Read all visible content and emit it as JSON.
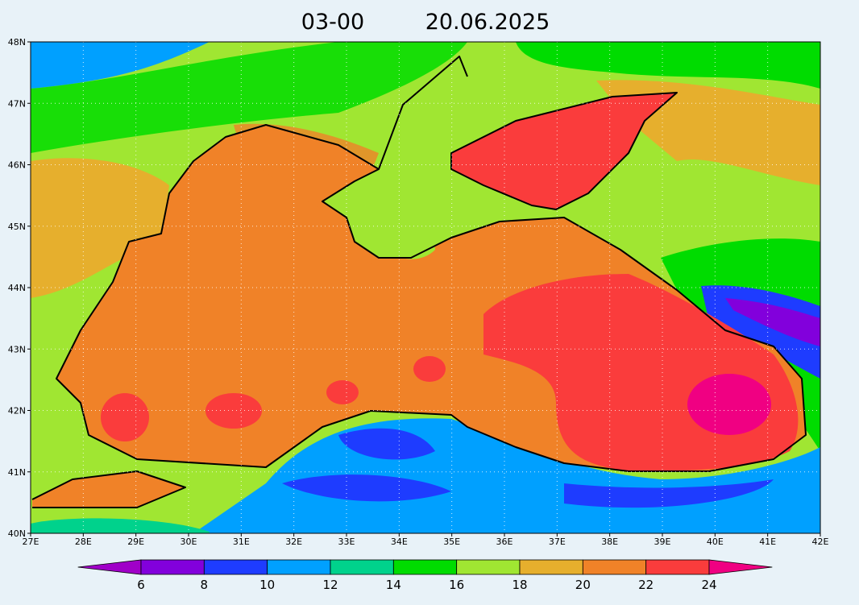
{
  "header": {
    "time": "03-00",
    "date": "20.06.2025"
  },
  "map": {
    "lon_range": [
      27,
      42
    ],
    "lat_range": [
      40,
      48
    ],
    "lon_ticks": [
      {
        "value": 27,
        "label": "27E"
      },
      {
        "value": 28,
        "label": "28E"
      },
      {
        "value": 29,
        "label": "29E"
      },
      {
        "value": 30,
        "label": "30E"
      },
      {
        "value": 31,
        "label": "31E"
      },
      {
        "value": 32,
        "label": "32E"
      },
      {
        "value": 33,
        "label": "33E"
      },
      {
        "value": 34,
        "label": "34E"
      },
      {
        "value": 35,
        "label": "35E"
      },
      {
        "value": 36,
        "label": "36E"
      },
      {
        "value": 37,
        "label": "37E"
      },
      {
        "value": 38,
        "label": "38E"
      },
      {
        "value": 39,
        "label": "39E"
      },
      {
        "value": 40,
        "label": "40E"
      },
      {
        "value": 41,
        "label": "41E"
      },
      {
        "value": 42,
        "label": "42E"
      }
    ],
    "lat_ticks": [
      {
        "value": 40,
        "label": "40N"
      },
      {
        "value": 41,
        "label": "41N"
      },
      {
        "value": 42,
        "label": "42N"
      },
      {
        "value": 43,
        "label": "43N"
      },
      {
        "value": 44,
        "label": "44N"
      },
      {
        "value": 45,
        "label": "45N"
      },
      {
        "value": 46,
        "label": "46N"
      },
      {
        "value": 47,
        "label": "47N"
      },
      {
        "value": 48,
        "label": "48N"
      }
    ]
  },
  "colorbar": {
    "levels": [
      6,
      8,
      10,
      12,
      14,
      16,
      18,
      20,
      22,
      24
    ],
    "colors": [
      "#a000c8",
      "#8200dc",
      "#1e3cff",
      "#00a0ff",
      "#00d28c",
      "#00dc00",
      "#a0e632",
      "#e6af2d",
      "#f08228",
      "#fa3c3c",
      "#f00082"
    ]
  }
}
